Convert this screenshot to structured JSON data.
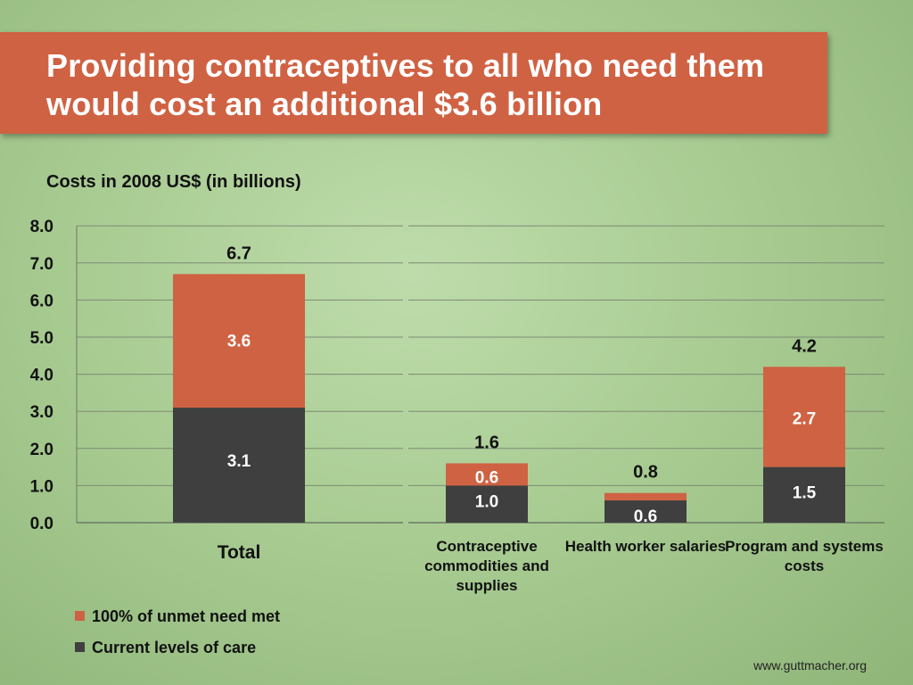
{
  "title": "Providing contraceptives to all who need them would cost an additional $3.6 billion",
  "footer": "www.guttmacher.org",
  "colors": {
    "unmet": "#cf6243",
    "current": "#3f3f3f",
    "background": "#b0d09c"
  },
  "chart_data": {
    "type": "bar",
    "stacked": true,
    "ylabel": "Costs in 2008 US$ (in billions)",
    "ylim": [
      0,
      8
    ],
    "yticks": [
      "0.0",
      "1.0",
      "2.0",
      "3.0",
      "4.0",
      "5.0",
      "6.0",
      "7.0",
      "8.0"
    ],
    "grid": true,
    "legend_position": "bottom-left",
    "categories": [
      "Total",
      "Contraceptive commodities and supplies",
      "Health worker salaries",
      "Program and systems costs"
    ],
    "series": [
      {
        "name": "Current levels of care",
        "values": [
          3.1,
          1.0,
          0.6,
          1.5
        ],
        "labels": [
          "3.1",
          "1.0",
          "0.6",
          "1.5"
        ]
      },
      {
        "name": "100% of unmet need met",
        "values": [
          3.6,
          0.6,
          0.2,
          2.7
        ],
        "labels": [
          "3.6",
          "0.6",
          "",
          "2.7"
        ]
      }
    ],
    "totals": [
      6.7,
      1.6,
      0.8,
      4.2
    ],
    "total_labels": [
      "6.7",
      "1.6",
      "0.8",
      "4.2"
    ]
  }
}
